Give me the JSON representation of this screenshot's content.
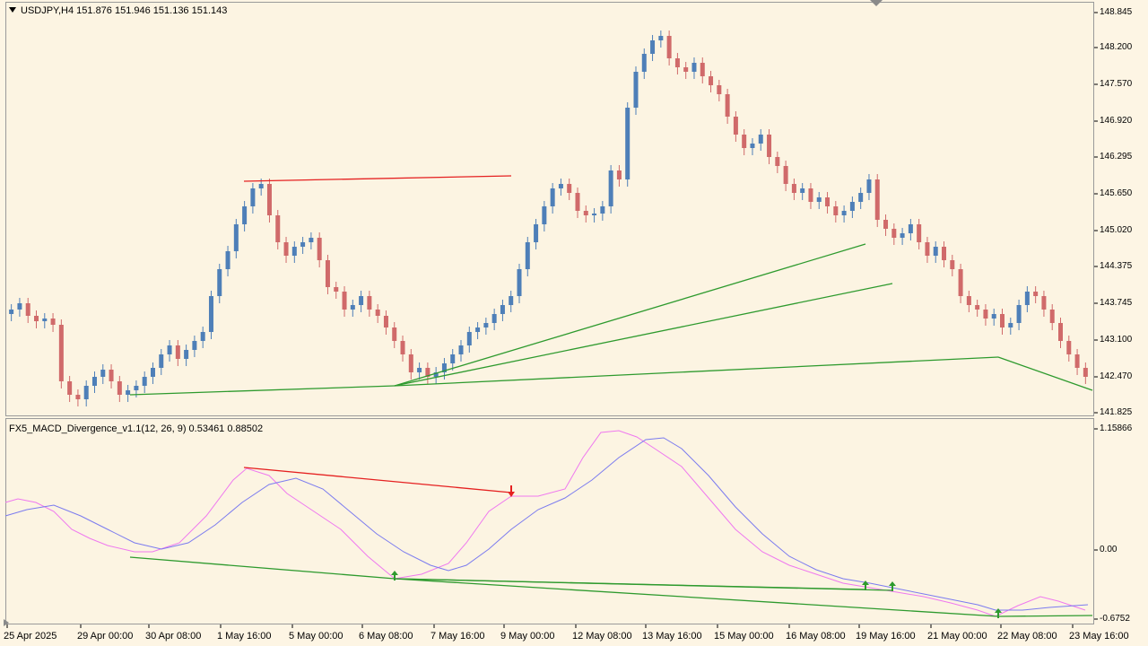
{
  "main_chart": {
    "symbol_line": "USDJPY,H4  151.876 151.946 151.136 151.143",
    "price_labels": [
      "148.845",
      "148.200",
      "147.570",
      "146.920",
      "146.295",
      "145.650",
      "145.020",
      "144.375",
      "143.745",
      "143.100",
      "142.470",
      "141.825"
    ]
  },
  "indicator": {
    "title_line": "FX5_MACD_Divergence_v1.1(12, 26, 9) 0.53461 0.88502",
    "scale_labels": [
      "1.15866",
      "0.00",
      "-0.6752"
    ]
  },
  "time_axis": {
    "labels": [
      "25 Apr 2025",
      "29 Apr 00:00",
      "30 Apr 08:00",
      "1 May 16:00",
      "5 May 00:00",
      "6 May 08:00",
      "7 May 16:00",
      "9 May 00:00",
      "12 May 08:00",
      "13 May 16:00",
      "15 May 00:00",
      "16 May 08:00",
      "19 May 16:00",
      "21 May 00:00",
      "22 May 08:00",
      "23 May 16:00"
    ]
  },
  "colors": {
    "bull_candle": "#4e7fb8",
    "bear_candle": "#d06a6a",
    "bullish_divergence": "#2e9a2e",
    "bearish_divergence": "#e52020",
    "macd_line": "#ef78ef",
    "signal_line": "#7b7bef"
  }
}
